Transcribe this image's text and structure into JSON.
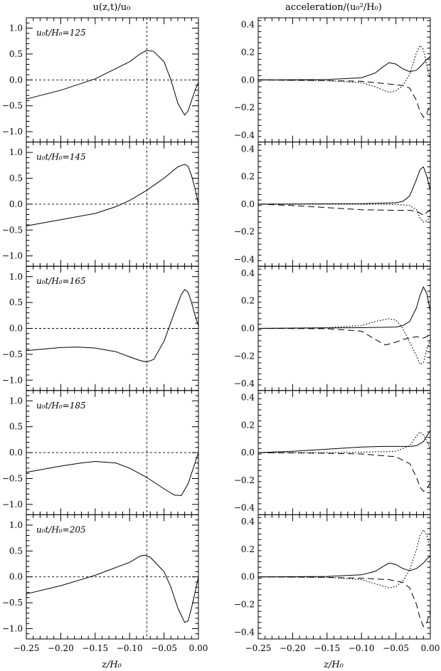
{
  "chart_data": [
    {
      "type": "line",
      "column": "velocity",
      "title": "u(z,t)/u₀",
      "xlabel": "z/H₀",
      "xlim": [
        -0.25,
        0.0
      ],
      "ylim": [
        -1.2,
        1.2
      ],
      "xticks": [
        "−0.25",
        "−0.20",
        "−0.15",
        "−0.10",
        "−0.05",
        "0.00"
      ],
      "yticks": [
        "1.0",
        "0.5",
        "0.0",
        "−0.5",
        "−1.0"
      ],
      "reference_lines": {
        "horizontal_y": 0.0,
        "vertical_x": -0.075
      },
      "panels": [
        {
          "label": "u₀t/H₀=125",
          "x": [
            -0.25,
            -0.2,
            -0.15,
            -0.1,
            -0.085,
            -0.075,
            -0.065,
            -0.05,
            -0.04,
            -0.03,
            -0.02,
            -0.015,
            -0.01,
            -0.005,
            0.0
          ],
          "y": [
            -0.37,
            -0.2,
            0.02,
            0.35,
            0.5,
            0.57,
            0.55,
            0.35,
            0.0,
            -0.45,
            -0.68,
            -0.6,
            -0.4,
            -0.2,
            -0.05
          ]
        },
        {
          "label": "u₀t/H₀=145",
          "x": [
            -0.25,
            -0.2,
            -0.15,
            -0.12,
            -0.1,
            -0.075,
            -0.05,
            -0.03,
            -0.02,
            -0.015,
            -0.01,
            -0.005,
            0.0
          ],
          "y": [
            -0.42,
            -0.3,
            -0.18,
            -0.05,
            0.07,
            0.27,
            0.5,
            0.72,
            0.77,
            0.73,
            0.55,
            0.3,
            0.0
          ]
        },
        {
          "label": "u₀t/H₀=165",
          "x": [
            -0.25,
            -0.2,
            -0.175,
            -0.15,
            -0.12,
            -0.1,
            -0.085,
            -0.075,
            -0.065,
            -0.05,
            -0.035,
            -0.025,
            -0.02,
            -0.015,
            -0.01,
            -0.005,
            0.0
          ],
          "y": [
            -0.43,
            -0.37,
            -0.36,
            -0.38,
            -0.45,
            -0.55,
            -0.62,
            -0.65,
            -0.6,
            -0.25,
            0.3,
            0.65,
            0.75,
            0.7,
            0.5,
            0.25,
            0.05
          ]
        },
        {
          "label": "u₀t/H₀=185",
          "x": [
            -0.25,
            -0.2,
            -0.17,
            -0.15,
            -0.12,
            -0.1,
            -0.075,
            -0.05,
            -0.035,
            -0.025,
            -0.015,
            -0.01,
            -0.005,
            0.0
          ],
          "y": [
            -0.38,
            -0.26,
            -0.2,
            -0.17,
            -0.2,
            -0.3,
            -0.48,
            -0.7,
            -0.82,
            -0.83,
            -0.6,
            -0.4,
            -0.2,
            0.0
          ]
        },
        {
          "label": "u₀t/H₀=205",
          "x": [
            -0.25,
            -0.2,
            -0.15,
            -0.1,
            -0.085,
            -0.078,
            -0.07,
            -0.05,
            -0.04,
            -0.03,
            -0.02,
            -0.015,
            -0.01,
            -0.005,
            0.0
          ],
          "y": [
            -0.33,
            -0.17,
            0.03,
            0.28,
            0.4,
            0.42,
            0.38,
            0.1,
            -0.2,
            -0.6,
            -0.88,
            -0.85,
            -0.6,
            -0.3,
            0.0
          ]
        }
      ]
    },
    {
      "type": "line",
      "column": "acceleration",
      "title": "acceleration/(u₀²/H₀)",
      "xlabel": "z/H₀",
      "xlim": [
        -0.25,
        0.0
      ],
      "ylim": [
        -0.45,
        0.45
      ],
      "xticks": [
        "−0.25",
        "−0.20",
        "−0.15",
        "−0.10",
        "−0.05",
        "0.00"
      ],
      "yticks": [
        "0.4",
        "0.2",
        "0.0",
        "−0.2",
        "−0.4"
      ],
      "reference_lines": {},
      "panels": [
        {
          "solid": {
            "x": [
              -0.25,
              -0.15,
              -0.1,
              -0.08,
              -0.07,
              -0.06,
              -0.05,
              -0.04,
              -0.03,
              -0.02,
              -0.01,
              -0.005,
              0.0
            ],
            "y": [
              0.0,
              0.003,
              0.015,
              0.05,
              0.09,
              0.125,
              0.115,
              0.08,
              0.06,
              0.07,
              0.12,
              0.15,
              0.17
            ]
          },
          "dashed": {
            "x": [
              -0.25,
              -0.15,
              -0.1,
              -0.08,
              -0.06,
              -0.04,
              -0.03,
              -0.02,
              -0.015,
              -0.01,
              -0.005,
              0.0
            ],
            "y": [
              0.0,
              -0.005,
              -0.01,
              -0.02,
              -0.03,
              -0.04,
              -0.06,
              -0.15,
              -0.23,
              -0.27,
              -0.24,
              -0.18
            ]
          },
          "dotted": {
            "x": [
              -0.25,
              -0.15,
              -0.1,
              -0.08,
              -0.06,
              -0.05,
              -0.04,
              -0.03,
              -0.02,
              -0.015,
              -0.01,
              -0.005,
              0.0
            ],
            "y": [
              0.0,
              -0.005,
              -0.02,
              -0.05,
              -0.09,
              -0.08,
              -0.04,
              0.04,
              0.2,
              0.25,
              0.22,
              0.1,
              0.0
            ]
          }
        },
        {
          "solid": {
            "x": [
              -0.25,
              -0.1,
              -0.05,
              -0.04,
              -0.03,
              -0.02,
              -0.015,
              -0.01,
              -0.005,
              0.0
            ],
            "y": [
              0.0,
              0.003,
              0.01,
              0.02,
              0.06,
              0.18,
              0.25,
              0.27,
              0.2,
              0.1
            ]
          },
          "dashed": {
            "x": [
              -0.25,
              -0.2,
              -0.15,
              -0.1,
              -0.05,
              -0.03,
              -0.02,
              -0.01,
              -0.005,
              0.0
            ],
            "y": [
              0.0,
              -0.01,
              -0.025,
              -0.04,
              -0.045,
              -0.045,
              -0.05,
              -0.08,
              -0.06,
              -0.04
            ]
          },
          "dotted": {
            "x": [
              -0.25,
              -0.15,
              -0.05,
              -0.03,
              -0.02,
              -0.015,
              -0.01,
              -0.005,
              0.0
            ],
            "y": [
              0.0,
              0.0,
              -0.002,
              -0.01,
              -0.04,
              -0.1,
              -0.13,
              -0.12,
              -0.09
            ]
          }
        },
        {
          "solid": {
            "x": [
              -0.25,
              -0.1,
              -0.05,
              -0.04,
              -0.03,
              -0.02,
              -0.015,
              -0.01,
              -0.005,
              0.0
            ],
            "y": [
              0.0,
              0.005,
              0.01,
              0.02,
              0.05,
              0.15,
              0.24,
              0.3,
              0.25,
              0.12
            ]
          },
          "dashed": {
            "x": [
              -0.25,
              -0.15,
              -0.1,
              -0.08,
              -0.065,
              -0.05,
              -0.04,
              -0.03,
              -0.02,
              -0.01,
              -0.005,
              0.0
            ],
            "y": [
              0.0,
              -0.002,
              -0.02,
              -0.08,
              -0.12,
              -0.1,
              -0.08,
              -0.07,
              -0.06,
              -0.07,
              -0.06,
              -0.05
            ]
          },
          "dotted": {
            "x": [
              -0.25,
              -0.15,
              -0.1,
              -0.08,
              -0.06,
              -0.05,
              -0.04,
              -0.03,
              -0.02,
              -0.015,
              -0.01,
              -0.005,
              0.0
            ],
            "y": [
              0.0,
              0.005,
              0.02,
              0.05,
              0.07,
              0.06,
              0.0,
              -0.1,
              -0.2,
              -0.26,
              -0.25,
              -0.15,
              -0.08
            ]
          }
        },
        {
          "solid": {
            "x": [
              -0.25,
              -0.2,
              -0.15,
              -0.1,
              -0.07,
              -0.05,
              -0.03,
              -0.02,
              -0.01,
              -0.005,
              0.0
            ],
            "y": [
              0.0,
              0.01,
              0.025,
              0.04,
              0.045,
              0.045,
              0.045,
              0.05,
              0.08,
              0.12,
              0.16
            ]
          },
          "dashed": {
            "x": [
              -0.25,
              -0.2,
              -0.15,
              -0.1,
              -0.05,
              -0.03,
              -0.02,
              -0.015,
              -0.01,
              -0.005,
              0.0
            ],
            "y": [
              0.0,
              -0.002,
              -0.005,
              -0.01,
              -0.03,
              -0.08,
              -0.18,
              -0.25,
              -0.28,
              -0.26,
              -0.22
            ]
          },
          "dotted": {
            "x": [
              -0.25,
              -0.15,
              -0.1,
              -0.05,
              -0.03,
              -0.02,
              -0.015,
              -0.01,
              -0.005,
              0.0
            ],
            "y": [
              0.0,
              0.0,
              0.003,
              0.01,
              0.05,
              0.12,
              0.15,
              0.13,
              0.08,
              0.03
            ]
          }
        },
        {
          "solid": {
            "x": [
              -0.25,
              -0.15,
              -0.1,
              -0.08,
              -0.07,
              -0.06,
              -0.05,
              -0.04,
              -0.03,
              -0.02,
              -0.01,
              -0.005,
              0.0
            ],
            "y": [
              0.0,
              0.003,
              0.015,
              0.04,
              0.07,
              0.1,
              0.09,
              0.06,
              0.045,
              0.06,
              0.1,
              0.13,
              0.15
            ]
          },
          "dashed": {
            "x": [
              -0.25,
              -0.15,
              -0.1,
              -0.06,
              -0.04,
              -0.03,
              -0.02,
              -0.015,
              -0.01,
              -0.005,
              0.0
            ],
            "y": [
              0.0,
              -0.003,
              -0.01,
              -0.02,
              -0.04,
              -0.08,
              -0.2,
              -0.3,
              -0.36,
              -0.33,
              -0.25
            ]
          },
          "dotted": {
            "x": [
              -0.25,
              -0.15,
              -0.1,
              -0.08,
              -0.06,
              -0.05,
              -0.04,
              -0.03,
              -0.02,
              -0.015,
              -0.01,
              -0.005,
              0.0
            ],
            "y": [
              0.0,
              -0.003,
              -0.02,
              -0.05,
              -0.08,
              -0.07,
              -0.03,
              0.05,
              0.2,
              0.3,
              0.34,
              0.3,
              0.2
            ]
          }
        }
      ]
    }
  ]
}
